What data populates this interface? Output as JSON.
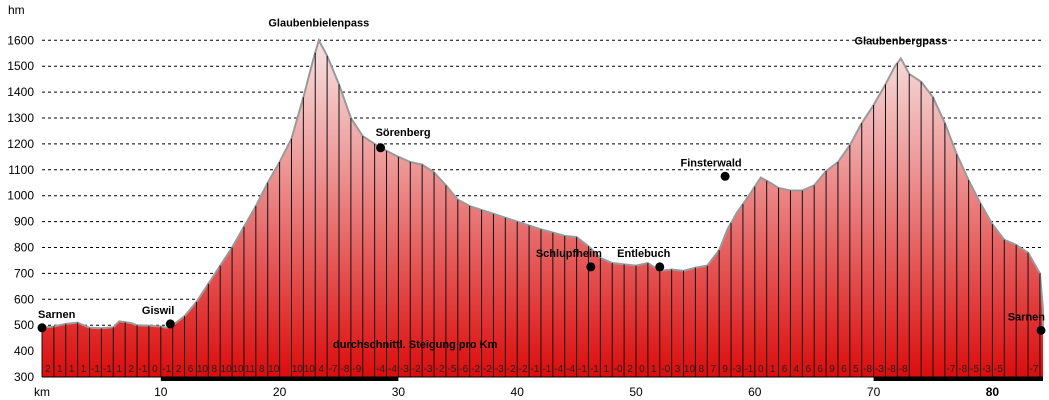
{
  "chart_data": {
    "type": "area",
    "ylabel": "hm",
    "xlabel": "km",
    "ylim": [
      300,
      1650
    ],
    "xlim": [
      0,
      84.5
    ],
    "yticks": [
      300,
      400,
      500,
      600,
      700,
      800,
      900,
      1000,
      1100,
      1200,
      1300,
      1400,
      1500,
      1600
    ],
    "xticks": [
      {
        "v": 0,
        "label": "km",
        "bold": false
      },
      {
        "v": 10,
        "label": "10",
        "bold": false
      },
      {
        "v": 20,
        "label": "20",
        "bold": false
      },
      {
        "v": 30,
        "label": "30",
        "bold": false
      },
      {
        "v": 40,
        "label": "40",
        "bold": false
      },
      {
        "v": 50,
        "label": "50",
        "bold": false
      },
      {
        "v": 60,
        "label": "60",
        "bold": false
      },
      {
        "v": 70,
        "label": "70",
        "bold": false
      },
      {
        "v": 80,
        "label": "80",
        "bold": true
      }
    ],
    "grid": "horizontal dashed",
    "colors": {
      "fill_top": "#f5d8d8",
      "fill_bottom": "#e01010",
      "line": "#9a9a9a",
      "bar": "#111111"
    },
    "profile": [
      [
        0,
        490
      ],
      [
        1,
        495
      ],
      [
        2,
        505
      ],
      [
        3,
        510
      ],
      [
        4,
        490
      ],
      [
        5,
        488
      ],
      [
        6,
        492
      ],
      [
        6.5,
        515
      ],
      [
        7.5,
        508
      ],
      [
        8,
        500
      ],
      [
        9,
        498
      ],
      [
        10,
        495
      ],
      [
        10.5,
        490
      ],
      [
        11,
        500
      ],
      [
        12,
        535
      ],
      [
        13,
        590
      ],
      [
        14,
        660
      ],
      [
        15,
        730
      ],
      [
        16,
        800
      ],
      [
        17,
        880
      ],
      [
        18,
        960
      ],
      [
        19,
        1050
      ],
      [
        20,
        1130
      ],
      [
        21,
        1220
      ],
      [
        22,
        1380
      ],
      [
        22.8,
        1520
      ],
      [
        23.3,
        1600
      ],
      [
        24,
        1540
      ],
      [
        25,
        1430
      ],
      [
        26,
        1300
      ],
      [
        27,
        1230
      ],
      [
        28.5,
        1185
      ],
      [
        30,
        1150
      ],
      [
        31,
        1130
      ],
      [
        32,
        1120
      ],
      [
        33,
        1090
      ],
      [
        34,
        1040
      ],
      [
        35,
        985
      ],
      [
        36,
        960
      ],
      [
        38,
        930
      ],
      [
        40,
        900
      ],
      [
        42,
        870
      ],
      [
        44,
        845
      ],
      [
        45,
        840
      ],
      [
        46,
        805
      ],
      [
        47,
        760
      ],
      [
        48,
        740
      ],
      [
        49,
        735
      ],
      [
        50,
        730
      ],
      [
        51,
        740
      ],
      [
        52,
        710
      ],
      [
        53,
        715
      ],
      [
        54,
        710
      ],
      [
        55,
        722
      ],
      [
        56,
        730
      ],
      [
        57,
        790
      ],
      [
        57.7,
        870
      ],
      [
        58.5,
        935
      ],
      [
        59.5,
        1000
      ],
      [
        60.5,
        1070
      ],
      [
        61.3,
        1050
      ],
      [
        62,
        1030
      ],
      [
        63,
        1020
      ],
      [
        64,
        1020
      ],
      [
        65,
        1040
      ],
      [
        66,
        1095
      ],
      [
        67,
        1130
      ],
      [
        68,
        1195
      ],
      [
        69,
        1280
      ],
      [
        70,
        1350
      ],
      [
        71,
        1430
      ],
      [
        71.8,
        1500
      ],
      [
        72.3,
        1530
      ],
      [
        73,
        1470
      ],
      [
        74,
        1440
      ],
      [
        75,
        1380
      ],
      [
        76,
        1280
      ],
      [
        77,
        1160
      ],
      [
        78,
        1060
      ],
      [
        79,
        970
      ],
      [
        80,
        890
      ],
      [
        81,
        830
      ],
      [
        82,
        810
      ],
      [
        83,
        780
      ],
      [
        84,
        700
      ],
      [
        85,
        560
      ],
      [
        85.5,
        500
      ],
      [
        86,
        470
      ],
      [
        87,
        480
      ]
    ],
    "waypoints": [
      {
        "name": "Sarnen",
        "km": 0,
        "alt": 490,
        "dot": true,
        "anchor": "start"
      },
      {
        "name": "Giswil",
        "km": 10.8,
        "alt": 505,
        "dot": true,
        "anchor": "end"
      },
      {
        "name": "Glaubenbielenpass",
        "km": 23.3,
        "alt": 1600,
        "dot": false,
        "anchor": "middle"
      },
      {
        "name": "Sörenberg",
        "km": 28.5,
        "alt": 1185,
        "dot": true,
        "anchor": "start"
      },
      {
        "name": "Schlupfheim",
        "km": 46.2,
        "alt": 725,
        "dot": true,
        "anchor": "middle"
      },
      {
        "name": "Entlebuch",
        "km": 52.0,
        "alt": 725,
        "dot": true,
        "anchor": "middle"
      },
      {
        "name": "Finsterwald",
        "km": 57.5,
        "alt": 1075,
        "dot": true,
        "anchor": "middle"
      },
      {
        "name": "Glaubenbergpass",
        "km": 72.3,
        "alt": 1530,
        "dot": false,
        "anchor": "middle"
      },
      {
        "name": "Sarnen",
        "km": 87,
        "alt": 480,
        "dot": true,
        "anchor": "end"
      }
    ],
    "annotation": "durchschnittl. Steigung pro Km",
    "gradients": [
      "2",
      "1",
      "1",
      "1",
      "-1",
      "-1",
      "1",
      "2",
      "-1",
      "0",
      "-1",
      "2",
      "6",
      "10",
      "8",
      "10",
      "10",
      "11",
      "8",
      "10",
      "",
      "10",
      "10",
      "4",
      "-7",
      "-8",
      "-9",
      "",
      "-4",
      "-4",
      "-3",
      "-2",
      "-3",
      "-2",
      "-5",
      "-6",
      "-2",
      "-2",
      "-3",
      "-2",
      "-2",
      "-1",
      "-1",
      "-4",
      "-4",
      "-1",
      "-1",
      "1",
      "-0",
      "2",
      "0",
      "1",
      "-0",
      "3",
      "10",
      "8",
      "7",
      "9",
      "-3",
      "-1",
      "0",
      "1",
      "6",
      "4",
      "6",
      "6",
      "9",
      "6",
      "5",
      "-8",
      "-3",
      "-8",
      "-8",
      "",
      "",
      "",
      "-7",
      "-8",
      "-5",
      "-3",
      "-5",
      "",
      "",
      "-7",
      "0"
    ]
  }
}
